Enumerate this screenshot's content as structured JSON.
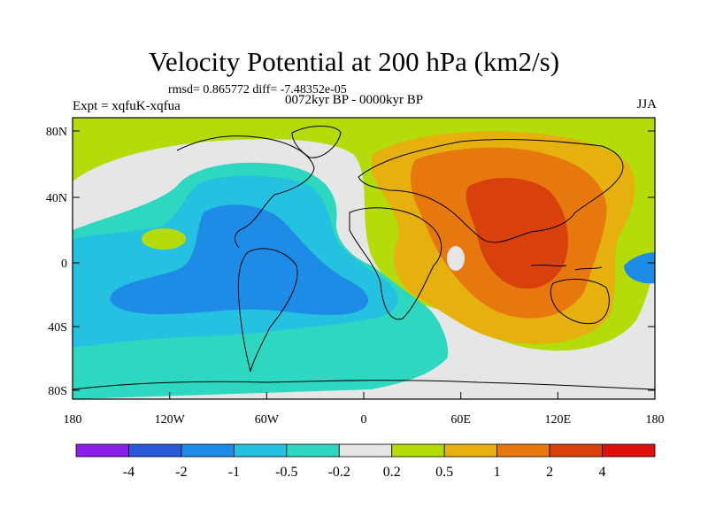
{
  "header": {
    "title": "Velocity Potential at 200 hPa (km2/s)",
    "stats": "rmsd= 0.865772 diff= -7.48352e-05",
    "experiment": "Expt = xqfuK-xqfua",
    "period": "0072kyr BP - 0000kyr BP",
    "season": "JJA"
  },
  "map": {
    "lat_ticks": [
      "80N",
      "40N",
      "0",
      "40S",
      "80S"
    ],
    "lon_ticks": [
      "180",
      "120W",
      "60W",
      "0",
      "60E",
      "120E",
      "180"
    ]
  },
  "colorbar": {
    "labels": [
      "-4",
      "-2",
      "-1",
      "-0.5",
      "-0.2",
      "0.2",
      "0.5",
      "1",
      "2",
      "4"
    ],
    "colors": [
      "#8d1ee8",
      "#2a58d8",
      "#1e8ce6",
      "#24c2e0",
      "#2ed8c0",
      "#e6e6e6",
      "#b4dc0a",
      "#e6b00e",
      "#e6780e",
      "#d8400c",
      "#e01010"
    ]
  }
}
